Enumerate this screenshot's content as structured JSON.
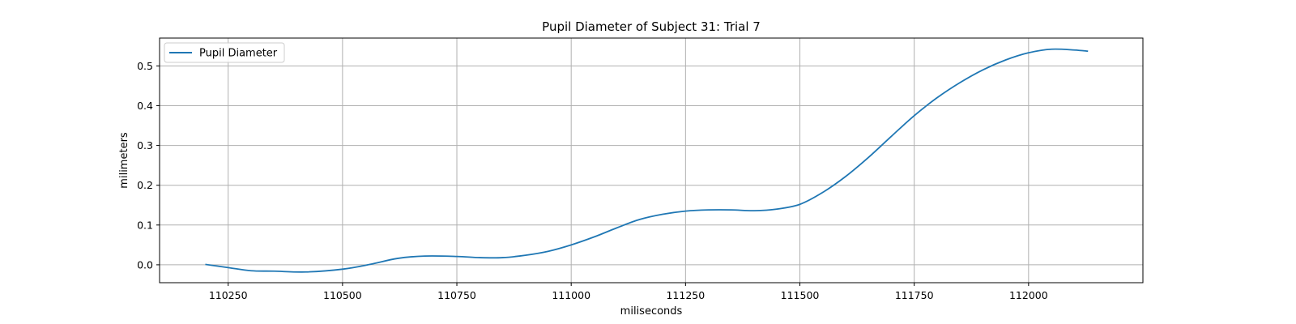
{
  "chart_data": {
    "type": "line",
    "title": "Pupil Diameter of Subject 31: Trial 7",
    "xlabel": "miliseconds",
    "ylabel": "milimeters",
    "xlim": [
      110100,
      112250
    ],
    "ylim": [
      -0.045,
      0.57
    ],
    "xticks": [
      110250,
      110500,
      110750,
      111000,
      111250,
      111500,
      111750,
      112000
    ],
    "yticks": [
      0.0,
      0.1,
      0.2,
      0.3,
      0.4,
      0.5
    ],
    "xtick_labels": [
      "110250",
      "110500",
      "110750",
      "111000",
      "111250",
      "111500",
      "111750",
      "112000"
    ],
    "ytick_labels": [
      "0.0",
      "0.1",
      "0.2",
      "0.3",
      "0.4",
      "0.5"
    ],
    "grid": true,
    "legend_position": "top-left",
    "colors": {
      "line": "#1f77b4",
      "grid": "#b0b0b0",
      "axes": "#000000"
    },
    "series": [
      {
        "name": "Pupil Diameter",
        "x": [
          110200,
          110250,
          110300,
          110350,
          110420,
          110500,
          110560,
          110620,
          110680,
          110750,
          110800,
          110850,
          110900,
          110950,
          111000,
          111050,
          111100,
          111150,
          111200,
          111250,
          111300,
          111350,
          111400,
          111450,
          111500,
          111550,
          111600,
          111650,
          111700,
          111750,
          111800,
          111850,
          111900,
          111950,
          112000,
          112050,
          112100,
          112130
        ],
        "y": [
          0.001,
          -0.007,
          -0.015,
          -0.016,
          -0.018,
          -0.011,
          0.001,
          0.016,
          0.022,
          0.021,
          0.018,
          0.018,
          0.024,
          0.034,
          0.05,
          0.07,
          0.093,
          0.114,
          0.127,
          0.135,
          0.138,
          0.138,
          0.136,
          0.14,
          0.152,
          0.182,
          0.222,
          0.27,
          0.323,
          0.375,
          0.42,
          0.458,
          0.49,
          0.515,
          0.533,
          0.542,
          0.54,
          0.537
        ]
      }
    ]
  }
}
